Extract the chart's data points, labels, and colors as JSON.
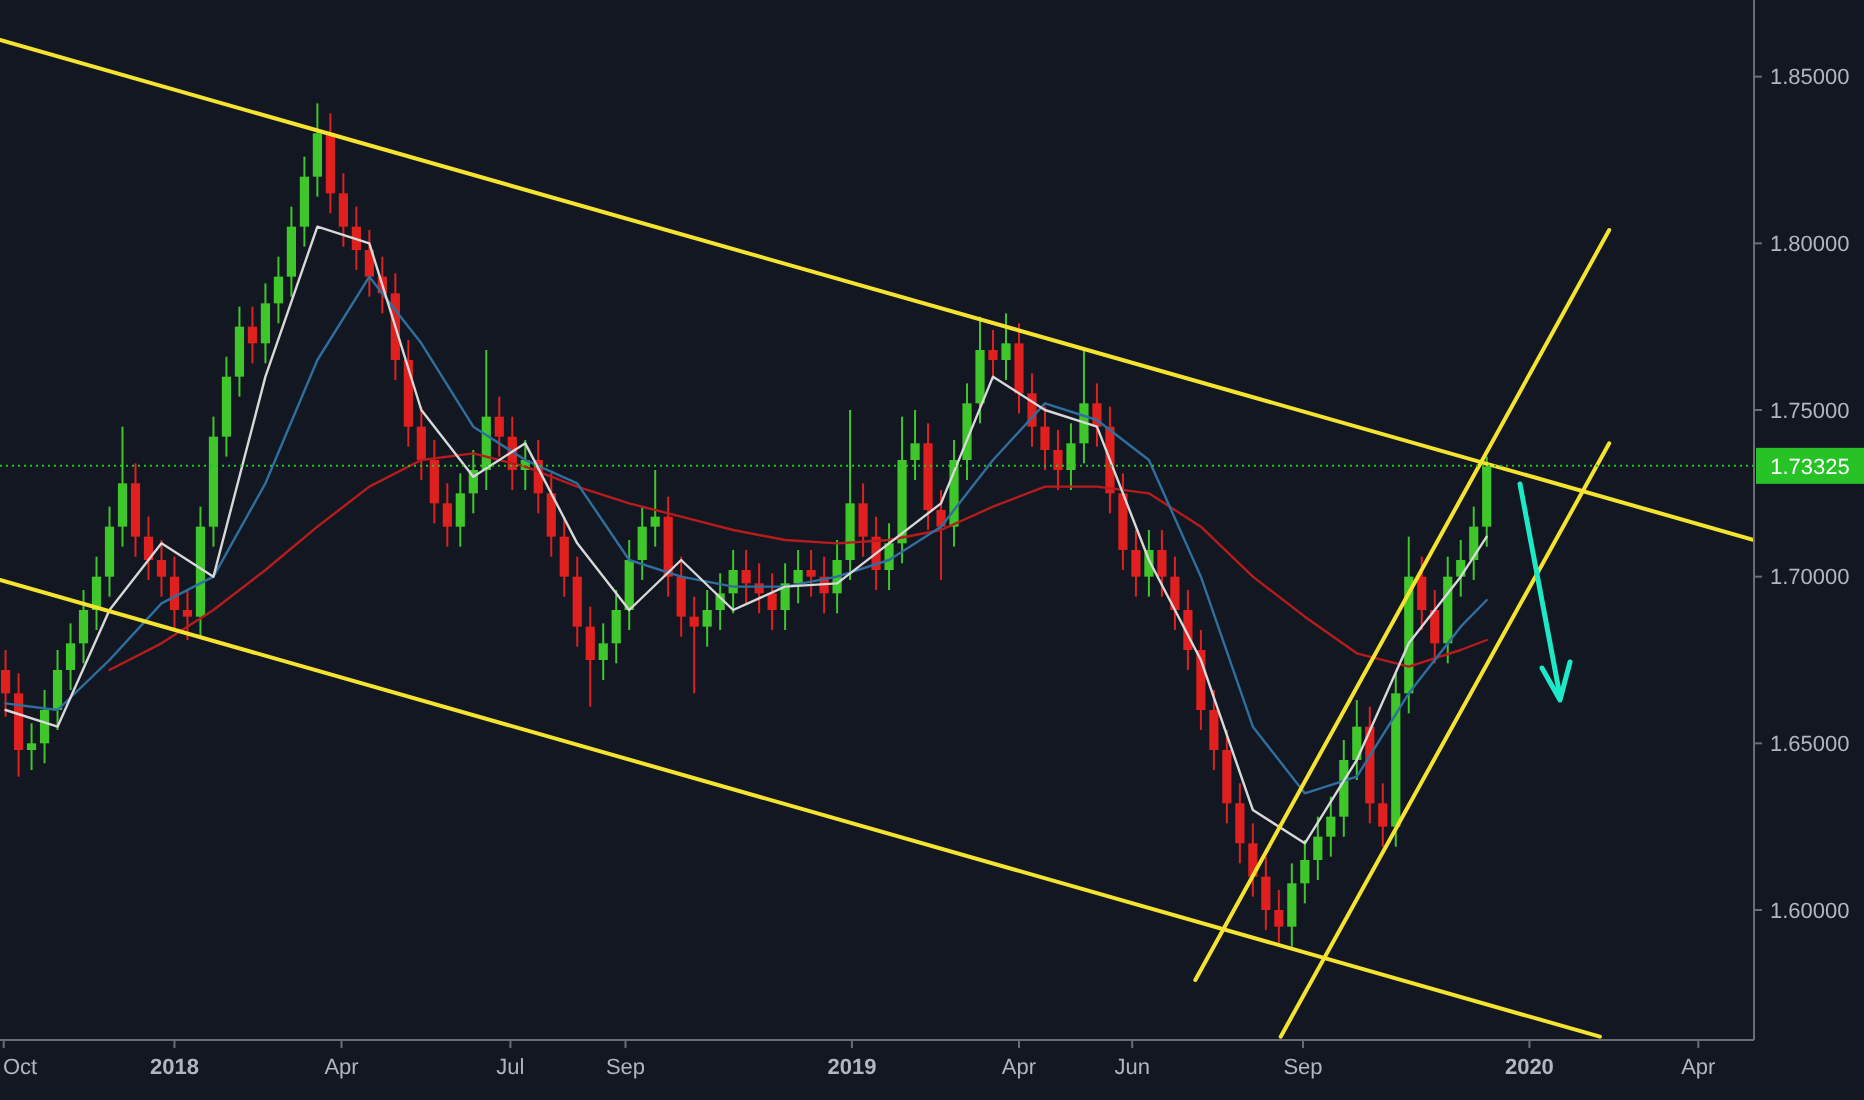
{
  "chart_data": {
    "type": "candlestick",
    "x": [
      "2017-10-02",
      "2017-10-09",
      "2017-10-16",
      "2017-10-23",
      "2017-10-30",
      "2017-11-06",
      "2017-11-13",
      "2017-11-20",
      "2017-11-27",
      "2017-12-04",
      "2017-12-11",
      "2017-12-18",
      "2017-12-25",
      "2018-01-01",
      "2018-01-08",
      "2018-01-15",
      "2018-01-22",
      "2018-01-29",
      "2018-02-05",
      "2018-02-12",
      "2018-02-19",
      "2018-02-26",
      "2018-03-05",
      "2018-03-12",
      "2018-03-19",
      "2018-03-26",
      "2018-04-02",
      "2018-04-09",
      "2018-04-16",
      "2018-04-23",
      "2018-04-30",
      "2018-05-07",
      "2018-05-14",
      "2018-05-21",
      "2018-05-28",
      "2018-06-04",
      "2018-06-11",
      "2018-06-18",
      "2018-06-25",
      "2018-07-02",
      "2018-07-09",
      "2018-07-16",
      "2018-07-23",
      "2018-07-30",
      "2018-08-06",
      "2018-08-13",
      "2018-08-20",
      "2018-08-27",
      "2018-09-03",
      "2018-09-10",
      "2018-09-17",
      "2018-09-24",
      "2018-10-01",
      "2018-10-08",
      "2018-10-15",
      "2018-10-22",
      "2018-10-29",
      "2018-11-05",
      "2018-11-12",
      "2018-11-19",
      "2018-11-26",
      "2018-12-03",
      "2018-12-10",
      "2018-12-17",
      "2018-12-24",
      "2018-12-31",
      "2019-01-07",
      "2019-01-14",
      "2019-01-21",
      "2019-01-28",
      "2019-02-04",
      "2019-02-11",
      "2019-02-18",
      "2019-02-25",
      "2019-03-04",
      "2019-03-11",
      "2019-03-18",
      "2019-03-25",
      "2019-04-01",
      "2019-04-08",
      "2019-04-15",
      "2019-04-22",
      "2019-04-29",
      "2019-05-06",
      "2019-05-13",
      "2019-05-20",
      "2019-05-27",
      "2019-06-03",
      "2019-06-10",
      "2019-06-17",
      "2019-06-24",
      "2019-07-01",
      "2019-07-08",
      "2019-07-15",
      "2019-07-22",
      "2019-07-29",
      "2019-08-05",
      "2019-08-12",
      "2019-08-19",
      "2019-08-26",
      "2019-09-02",
      "2019-09-09",
      "2019-09-16",
      "2019-09-23",
      "2019-09-30",
      "2019-10-07",
      "2019-10-14",
      "2019-10-21",
      "2019-10-28",
      "2019-11-04",
      "2019-11-11",
      "2019-11-18",
      "2019-11-25",
      "2019-12-02",
      "2019-12-09"
    ],
    "ohlc": [
      [
        1.672,
        1.678,
        1.658,
        1.665
      ],
      [
        1.665,
        1.671,
        1.64,
        1.648
      ],
      [
        1.648,
        1.656,
        1.642,
        1.65
      ],
      [
        1.65,
        1.666,
        1.644,
        1.66
      ],
      [
        1.66,
        1.678,
        1.654,
        1.672
      ],
      [
        1.672,
        1.686,
        1.666,
        1.68
      ],
      [
        1.68,
        1.696,
        1.674,
        1.69
      ],
      [
        1.69,
        1.706,
        1.684,
        1.7
      ],
      [
        1.7,
        1.721,
        1.694,
        1.715
      ],
      [
        1.715,
        1.745,
        1.709,
        1.728
      ],
      [
        1.728,
        1.734,
        1.706,
        1.712
      ],
      [
        1.712,
        1.718,
        1.699,
        1.705
      ],
      [
        1.705,
        1.711,
        1.694,
        1.7
      ],
      [
        1.7,
        1.706,
        1.684,
        1.69
      ],
      [
        1.69,
        1.696,
        1.681,
        1.688
      ],
      [
        1.688,
        1.721,
        1.682,
        1.715
      ],
      [
        1.715,
        1.748,
        1.709,
        1.742
      ],
      [
        1.742,
        1.766,
        1.736,
        1.76
      ],
      [
        1.76,
        1.781,
        1.754,
        1.775
      ],
      [
        1.775,
        1.781,
        1.764,
        1.77
      ],
      [
        1.77,
        1.788,
        1.764,
        1.782
      ],
      [
        1.782,
        1.796,
        1.776,
        1.79
      ],
      [
        1.79,
        1.811,
        1.784,
        1.805
      ],
      [
        1.805,
        1.826,
        1.799,
        1.82
      ],
      [
        1.82,
        1.842,
        1.814,
        1.833
      ],
      [
        1.833,
        1.839,
        1.809,
        1.815
      ],
      [
        1.815,
        1.821,
        1.799,
        1.805
      ],
      [
        1.805,
        1.811,
        1.792,
        1.798
      ],
      [
        1.798,
        1.804,
        1.784,
        1.79
      ],
      [
        1.79,
        1.796,
        1.779,
        1.785
      ],
      [
        1.785,
        1.791,
        1.759,
        1.765
      ],
      [
        1.765,
        1.771,
        1.739,
        1.745
      ],
      [
        1.745,
        1.751,
        1.729,
        1.735
      ],
      [
        1.735,
        1.741,
        1.716,
        1.722
      ],
      [
        1.722,
        1.728,
        1.709,
        1.715
      ],
      [
        1.715,
        1.731,
        1.709,
        1.725
      ],
      [
        1.725,
        1.738,
        1.719,
        1.732
      ],
      [
        1.732,
        1.768,
        1.726,
        1.748
      ],
      [
        1.748,
        1.754,
        1.736,
        1.742
      ],
      [
        1.742,
        1.748,
        1.726,
        1.732
      ],
      [
        1.732,
        1.741,
        1.726,
        1.735
      ],
      [
        1.735,
        1.741,
        1.719,
        1.725
      ],
      [
        1.725,
        1.731,
        1.706,
        1.712
      ],
      [
        1.712,
        1.718,
        1.694,
        1.7
      ],
      [
        1.7,
        1.706,
        1.679,
        1.685
      ],
      [
        1.685,
        1.691,
        1.661,
        1.675
      ],
      [
        1.675,
        1.686,
        1.669,
        1.68
      ],
      [
        1.68,
        1.696,
        1.674,
        1.69
      ],
      [
        1.69,
        1.711,
        1.684,
        1.705
      ],
      [
        1.705,
        1.721,
        1.699,
        1.715
      ],
      [
        1.715,
        1.732,
        1.709,
        1.718
      ],
      [
        1.718,
        1.724,
        1.694,
        1.7
      ],
      [
        1.7,
        1.706,
        1.682,
        1.688
      ],
      [
        1.688,
        1.694,
        1.665,
        1.685
      ],
      [
        1.685,
        1.696,
        1.679,
        1.69
      ],
      [
        1.69,
        1.701,
        1.684,
        1.695
      ],
      [
        1.695,
        1.708,
        1.689,
        1.702
      ],
      [
        1.702,
        1.708,
        1.692,
        1.698
      ],
      [
        1.698,
        1.704,
        1.689,
        1.695
      ],
      [
        1.695,
        1.701,
        1.684,
        1.69
      ],
      [
        1.69,
        1.704,
        1.684,
        1.698
      ],
      [
        1.698,
        1.708,
        1.692,
        1.702
      ],
      [
        1.702,
        1.708,
        1.694,
        1.7
      ],
      [
        1.7,
        1.706,
        1.689,
        1.695
      ],
      [
        1.695,
        1.711,
        1.689,
        1.705
      ],
      [
        1.705,
        1.75,
        1.699,
        1.722
      ],
      [
        1.722,
        1.728,
        1.706,
        1.712
      ],
      [
        1.712,
        1.718,
        1.696,
        1.702
      ],
      [
        1.702,
        1.716,
        1.696,
        1.71
      ],
      [
        1.71,
        1.748,
        1.704,
        1.735
      ],
      [
        1.735,
        1.75,
        1.729,
        1.74
      ],
      [
        1.74,
        1.746,
        1.714,
        1.72
      ],
      [
        1.72,
        1.726,
        1.699,
        1.715
      ],
      [
        1.715,
        1.741,
        1.709,
        1.735
      ],
      [
        1.735,
        1.758,
        1.729,
        1.752
      ],
      [
        1.752,
        1.778,
        1.746,
        1.768
      ],
      [
        1.768,
        1.774,
        1.759,
        1.765
      ],
      [
        1.765,
        1.779,
        1.759,
        1.77
      ],
      [
        1.77,
        1.776,
        1.749,
        1.755
      ],
      [
        1.755,
        1.761,
        1.739,
        1.745
      ],
      [
        1.745,
        1.751,
        1.732,
        1.738
      ],
      [
        1.738,
        1.744,
        1.726,
        1.732
      ],
      [
        1.732,
        1.746,
        1.726,
        1.74
      ],
      [
        1.74,
        1.768,
        1.734,
        1.752
      ],
      [
        1.752,
        1.758,
        1.739,
        1.745
      ],
      [
        1.745,
        1.751,
        1.719,
        1.725
      ],
      [
        1.725,
        1.731,
        1.702,
        1.708
      ],
      [
        1.708,
        1.714,
        1.694,
        1.7
      ],
      [
        1.7,
        1.714,
        1.694,
        1.708
      ],
      [
        1.708,
        1.714,
        1.694,
        1.7
      ],
      [
        1.7,
        1.706,
        1.684,
        1.69
      ],
      [
        1.69,
        1.696,
        1.672,
        1.678
      ],
      [
        1.678,
        1.684,
        1.654,
        1.66
      ],
      [
        1.66,
        1.666,
        1.642,
        1.648
      ],
      [
        1.648,
        1.654,
        1.626,
        1.632
      ],
      [
        1.632,
        1.638,
        1.614,
        1.62
      ],
      [
        1.62,
        1.626,
        1.604,
        1.61
      ],
      [
        1.61,
        1.616,
        1.594,
        1.6
      ],
      [
        1.6,
        1.606,
        1.589,
        1.595
      ],
      [
        1.595,
        1.614,
        1.589,
        1.608
      ],
      [
        1.608,
        1.621,
        1.602,
        1.615
      ],
      [
        1.615,
        1.628,
        1.609,
        1.622
      ],
      [
        1.622,
        1.634,
        1.616,
        1.628
      ],
      [
        1.628,
        1.651,
        1.622,
        1.645
      ],
      [
        1.645,
        1.663,
        1.639,
        1.655
      ],
      [
        1.655,
        1.661,
        1.626,
        1.632
      ],
      [
        1.632,
        1.638,
        1.619,
        1.625
      ],
      [
        1.625,
        1.671,
        1.619,
        1.665
      ],
      [
        1.665,
        1.712,
        1.659,
        1.7
      ],
      [
        1.7,
        1.706,
        1.684,
        1.69
      ],
      [
        1.69,
        1.696,
        1.674,
        1.68
      ],
      [
        1.68,
        1.706,
        1.674,
        1.7
      ],
      [
        1.7,
        1.711,
        1.694,
        1.705
      ],
      [
        1.705,
        1.721,
        1.699,
        1.715
      ],
      [
        1.715,
        1.736,
        1.709,
        1.733
      ]
    ],
    "series": [
      {
        "type": "line",
        "color": "#b71c1c",
        "x": [
          "2017-11-27",
          "2017-12-25",
          "2018-01-22",
          "2018-02-19",
          "2018-03-19",
          "2018-04-16",
          "2018-05-14",
          "2018-06-11",
          "2018-07-09",
          "2018-08-06",
          "2018-09-03",
          "2018-10-01",
          "2018-10-29",
          "2018-11-26",
          "2018-12-24",
          "2019-01-21",
          "2019-02-18",
          "2019-03-18",
          "2019-04-15",
          "2019-05-13",
          "2019-06-10",
          "2019-07-08",
          "2019-08-05",
          "2019-09-02",
          "2019-09-30",
          "2019-10-28",
          "2019-11-25",
          "2019-12-09"
        ],
        "values": [
          1.672,
          1.68,
          1.69,
          1.702,
          1.715,
          1.727,
          1.735,
          1.737,
          1.733,
          1.727,
          1.722,
          1.718,
          1.714,
          1.711,
          1.71,
          1.711,
          1.714,
          1.721,
          1.727,
          1.727,
          1.725,
          1.715,
          1.7,
          1.688,
          1.677,
          1.673,
          1.678,
          1.681
        ]
      },
      {
        "type": "line",
        "color": "#2f6f9f",
        "x": [
          "2017-10-02",
          "2017-10-30",
          "2017-11-27",
          "2017-12-25",
          "2018-01-22",
          "2018-02-19",
          "2018-03-19",
          "2018-04-16",
          "2018-05-14",
          "2018-06-11",
          "2018-07-09",
          "2018-08-06",
          "2018-09-03",
          "2018-10-01",
          "2018-10-29",
          "2018-11-26",
          "2018-12-24",
          "2019-01-21",
          "2019-02-18",
          "2019-03-18",
          "2019-04-15",
          "2019-05-13",
          "2019-06-10",
          "2019-07-08",
          "2019-08-05",
          "2019-09-02",
          "2019-09-30",
          "2019-10-28",
          "2019-11-25",
          "2019-12-09"
        ],
        "values": [
          1.662,
          1.66,
          1.675,
          1.692,
          1.7,
          1.728,
          1.765,
          1.79,
          1.77,
          1.745,
          1.735,
          1.728,
          1.705,
          1.7,
          1.697,
          1.697,
          1.7,
          1.705,
          1.715,
          1.735,
          1.752,
          1.747,
          1.735,
          1.7,
          1.655,
          1.635,
          1.64,
          1.665,
          1.685,
          1.693
        ]
      },
      {
        "type": "line",
        "color": "#d8d8d8",
        "x": [
          "2017-10-02",
          "2017-10-30",
          "2017-11-27",
          "2017-12-25",
          "2018-01-22",
          "2018-02-19",
          "2018-03-19",
          "2018-04-16",
          "2018-05-14",
          "2018-06-11",
          "2018-07-09",
          "2018-08-06",
          "2018-09-03",
          "2018-10-01",
          "2018-10-29",
          "2018-11-26",
          "2018-12-24",
          "2019-01-21",
          "2019-02-18",
          "2019-03-18",
          "2019-04-15",
          "2019-05-13",
          "2019-06-10",
          "2019-07-08",
          "2019-08-05",
          "2019-09-02",
          "2019-09-30",
          "2019-10-28",
          "2019-11-25",
          "2019-12-09"
        ],
        "values": [
          1.66,
          1.655,
          1.69,
          1.71,
          1.7,
          1.76,
          1.805,
          1.8,
          1.75,
          1.73,
          1.74,
          1.71,
          1.69,
          1.705,
          1.69,
          1.697,
          1.698,
          1.71,
          1.722,
          1.76,
          1.75,
          1.745,
          1.705,
          1.675,
          1.63,
          1.62,
          1.645,
          1.68,
          1.7,
          1.712
        ]
      },
      {
        "type": "line",
        "color": "#f5e330",
        "x": [
          "2017-09-29",
          "2020-05-01"
        ],
        "values": [
          1.861,
          1.711
        ]
      },
      {
        "type": "line",
        "color": "#f5e330",
        "x": [
          "2017-09-29",
          "2020-02-08"
        ],
        "values": [
          1.699,
          1.562
        ]
      },
      {
        "type": "line",
        "color": "#f5e330",
        "x": [
          "2019-07-05",
          "2020-02-13"
        ],
        "values": [
          1.579,
          1.804
        ]
      },
      {
        "type": "line",
        "color": "#f5e330",
        "x": [
          "2019-08-20",
          "2020-02-13"
        ],
        "values": [
          1.562,
          1.74
        ]
      }
    ],
    "ref_lines": [
      {
        "axis": "y",
        "value": 1.73325,
        "label": "1.73325",
        "color": "#26c226",
        "line_style": "dotted"
      }
    ],
    "xlim": [
      "2017-09-29",
      "2020-05-01"
    ],
    "xticks": [
      {
        "value": "2017-10-01",
        "label": "Oct"
      },
      {
        "value": "2018-01-01",
        "label": "2018"
      },
      {
        "value": "2018-04-01",
        "label": "Apr"
      },
      {
        "value": "2018-07-01",
        "label": "Jul"
      },
      {
        "value": "2018-09-01",
        "label": "Sep"
      },
      {
        "value": "2019-01-01",
        "label": "2019"
      },
      {
        "value": "2019-04-01",
        "label": "Apr"
      },
      {
        "value": "2019-06-01",
        "label": "Jun"
      },
      {
        "value": "2019-09-01",
        "label": "Sep"
      },
      {
        "value": "2020-01-01",
        "label": "2020"
      },
      {
        "value": "2020-04-01",
        "label": "Apr"
      }
    ],
    "ylim": [
      1.561,
      1.873
    ],
    "yticks": [
      {
        "value": 1.6,
        "label": "1.60000"
      },
      {
        "value": 1.65,
        "label": "1.65000"
      },
      {
        "value": 1.7,
        "label": "1.70000"
      },
      {
        "value": 1.75,
        "label": "1.75000"
      },
      {
        "value": 1.8,
        "label": "1.80000"
      },
      {
        "value": 1.85,
        "label": "1.85000"
      }
    ]
  }
}
